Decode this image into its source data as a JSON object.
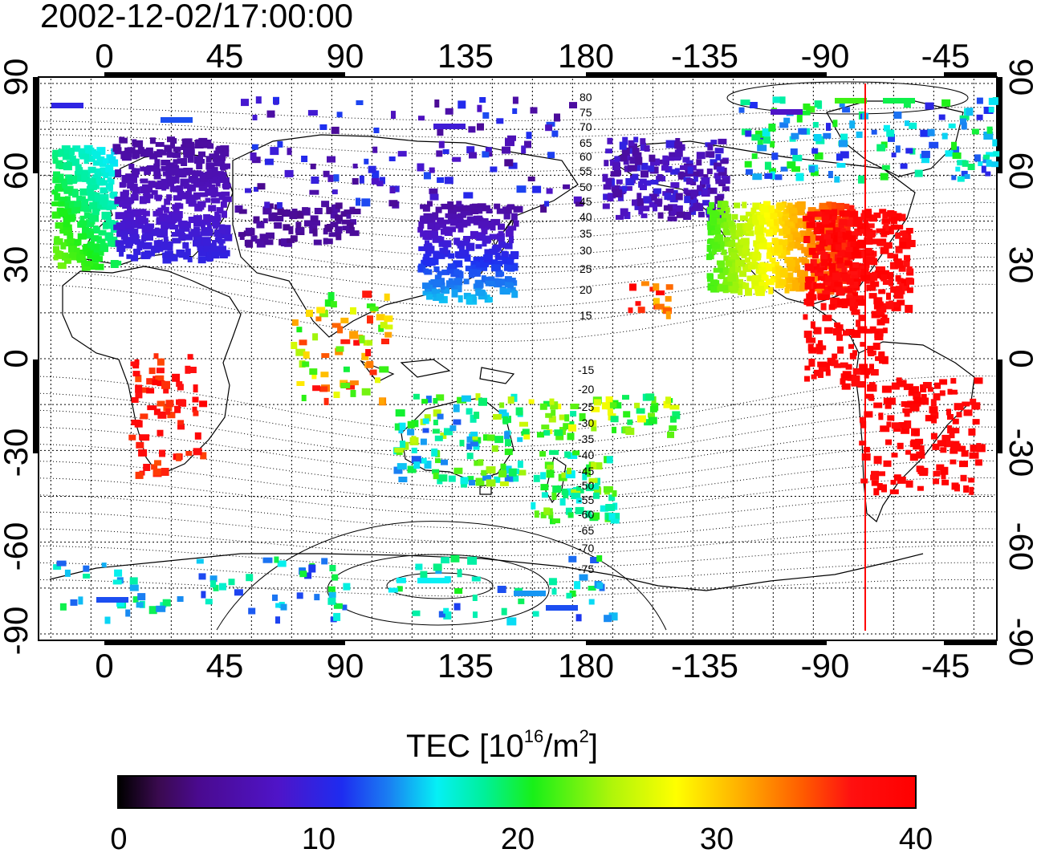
{
  "title": "2002-12-02/17:00:00",
  "map": {
    "top_lon_labels": [
      "0",
      "45",
      "90",
      "135",
      "180",
      "-135",
      "-90",
      "-45"
    ],
    "bottom_lon_labels": [
      "0",
      "45",
      "90",
      "135",
      "180",
      "-135",
      "-90",
      "-45"
    ],
    "left_lat_labels": [
      "90",
      "60",
      "30",
      "0",
      "-30",
      "-60",
      "-90"
    ],
    "right_lat_labels": [
      "90",
      "60",
      "30",
      "0",
      "-30",
      "-60",
      "-90"
    ],
    "north_contour_labels": [
      "80",
      "75",
      "70",
      "65",
      "60",
      "55",
      "50",
      "45",
      "40",
      "35",
      "30",
      "25",
      "20",
      "15"
    ],
    "south_contour_labels": [
      "-15",
      "-20",
      "-25",
      "-30",
      "-35",
      "-40",
      "-45",
      "-50",
      "-55",
      "-60",
      "-65",
      "-70",
      "-75"
    ],
    "meridian_marker_lon": -75,
    "marker_color": "#ff0000"
  },
  "colorbar": {
    "title_prefix": "TEC  [10",
    "title_exp1": "16",
    "title_mid": "/m",
    "title_exp2": "2",
    "title_suffix": "]",
    "ticks": [
      "0",
      "10",
      "20",
      "30",
      "40"
    ],
    "range": [
      0,
      40
    ],
    "colors": [
      "#000000",
      "#4a0a8f",
      "#1e2cf0",
      "#05f0f5",
      "#18f018",
      "#ffff00",
      "#ff5a00",
      "#ff0000"
    ]
  }
}
